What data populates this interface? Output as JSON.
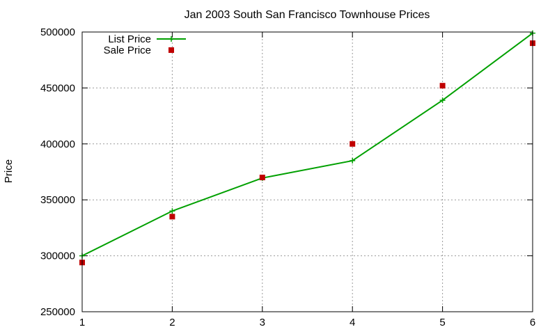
{
  "chart_data": {
    "type": "line",
    "title": "Jan 2003 South San Francisco Townhouse Prices",
    "xlabel": "",
    "ylabel": "Price",
    "xlim": [
      1,
      6
    ],
    "ylim": [
      250000,
      500000
    ],
    "x_ticks": [
      "1",
      "2",
      "3",
      "4",
      "5",
      "6"
    ],
    "y_ticks": [
      "250000",
      "300000",
      "350000",
      "400000",
      "450000",
      "500000"
    ],
    "grid": true,
    "legend_position": "top-left",
    "series": [
      {
        "name": "List Price",
        "style": "line+points",
        "color": "#00a000",
        "x": [
          1,
          2,
          3,
          4,
          5,
          6
        ],
        "y": [
          300000,
          340000,
          369500,
          385000,
          439000,
          499000
        ]
      },
      {
        "name": "Sale Price",
        "style": "points",
        "color": "#c00000",
        "x": [
          1,
          2,
          3,
          4,
          5,
          6
        ],
        "y": [
          294000,
          335000,
          370000,
          400000,
          452000,
          490000
        ]
      }
    ]
  }
}
